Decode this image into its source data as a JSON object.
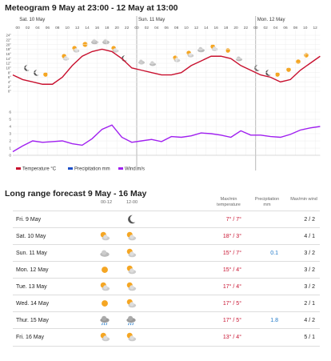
{
  "meteogram": {
    "title": "Meteogram 9 May at 23:00 - 12 May at 13:00",
    "days": [
      "Sat. 10 May",
      "Sun. 11 May",
      "Mon. 12 May"
    ],
    "hours": [
      "00",
      "02",
      "04",
      "06",
      "08",
      "10",
      "12",
      "14",
      "16",
      "18",
      "20",
      "22",
      "00",
      "02",
      "04",
      "06",
      "08",
      "10",
      "12",
      "14",
      "16",
      "18",
      "20",
      "22",
      "00",
      "02",
      "04",
      "06",
      "08",
      "10",
      "12"
    ],
    "x": [
      0,
      2,
      4,
      6,
      8,
      10,
      12,
      14,
      16,
      18,
      20,
      22,
      24,
      26,
      28,
      30,
      32,
      34,
      36,
      38,
      40,
      42,
      44,
      46,
      48,
      50,
      52,
      54,
      56,
      58,
      60,
      62
    ],
    "temperature": [
      7,
      5,
      4,
      3,
      3,
      6,
      11,
      15,
      17,
      18,
      17,
      14,
      10,
      9,
      8,
      7,
      7,
      8,
      11,
      13,
      15,
      15,
      14,
      11,
      9,
      7,
      6,
      4,
      5,
      9,
      12,
      15
    ],
    "wind": [
      0.5,
      1.3,
      2,
      1.8,
      1.9,
      2,
      1.6,
      1.4,
      2.3,
      3.6,
      4.2,
      2.5,
      1.8,
      2,
      2.2,
      1.9,
      2.6,
      2.5,
      2.7,
      3.1,
      3,
      2.8,
      2.5,
      3.4,
      2.8,
      2.8,
      2.6,
      2.5,
      2.9,
      3.5,
      3.8,
      4
    ],
    "temp_ylim": [
      0,
      24
    ],
    "temp_yticks": [
      {
        "value": 0,
        "label": "0°"
      },
      {
        "value": 2,
        "label": "2°"
      },
      {
        "value": 4,
        "label": "4°"
      },
      {
        "value": 6,
        "label": "6°"
      },
      {
        "value": 8,
        "label": "8°"
      },
      {
        "value": 10,
        "label": "10°"
      },
      {
        "value": 12,
        "label": "12°"
      },
      {
        "value": 14,
        "label": "14°"
      },
      {
        "value": 16,
        "label": "16°"
      },
      {
        "value": 18,
        "label": "18°"
      },
      {
        "value": 20,
        "label": "20°"
      },
      {
        "value": 22,
        "label": "22°"
      },
      {
        "value": 24,
        "label": "24°"
      }
    ],
    "wind_ylim": [
      0,
      6
    ],
    "wind_yticks": [
      0,
      1,
      2,
      3,
      4,
      5,
      6
    ],
    "temp_color": "#c8102e",
    "wind_color": "#a020f0",
    "precip_color": "#1e50c8",
    "legend": [
      "Temperature °C",
      "Precipitation mm",
      "Wind m/s"
    ]
  },
  "forecast": {
    "title": "Long range forecast 9 May - 16 May",
    "headers": [
      "00-12",
      "12-00",
      "Max/min temperature",
      "Precipitation mm",
      "Max/min wind"
    ],
    "rows": [
      {
        "day": "Fri. 9 May",
        "temp": "7° / 7°",
        "wind": "2 / 2"
      },
      {
        "day": "Sat. 10 May",
        "temp": "18° / 3°",
        "wind": "4 / 1"
      },
      {
        "day": "Sun. 11 May",
        "temp": "15° / 7°",
        "precip": "0.1",
        "wind": "3 / 2"
      },
      {
        "day": "Mon. 12 May",
        "temp": "15° / 4°",
        "wind": "3 / 2"
      },
      {
        "day": "Tue. 13 May",
        "temp": "17° / 4°",
        "wind": "3 / 2"
      },
      {
        "day": "Wed. 14 May",
        "temp": "17° / 5°",
        "wind": "2 / 1"
      },
      {
        "day": "Thur. 15 May",
        "temp": "17° / 5°",
        "precip": "1.8",
        "wind": "4 / 2"
      },
      {
        "day": "Fri. 16 May",
        "temp": "13° / 4°",
        "wind": "5 / 1"
      }
    ]
  }
}
